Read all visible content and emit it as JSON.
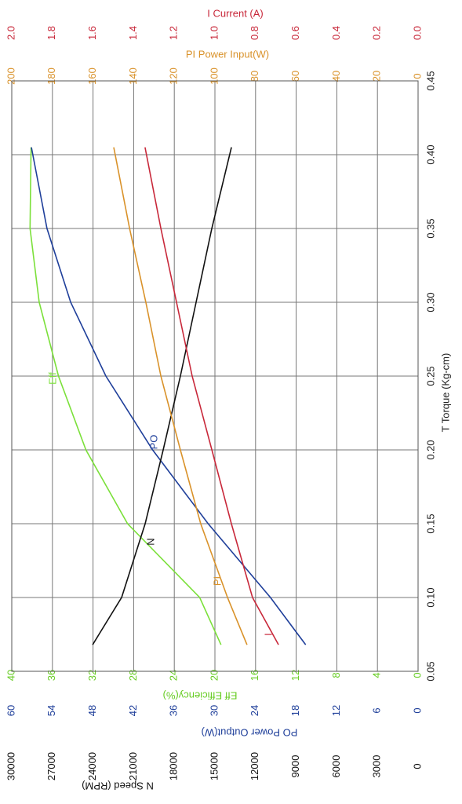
{
  "chart_data": {
    "type": "line",
    "x_label": "T    Torque (Kg-cm)",
    "xlim": [
      0.05,
      0.45
    ],
    "xticks": [
      0.05,
      {
        "value": 0.1,
        "label": "0.10"
      },
      0.15,
      {
        "value": 0.2,
        "label": "0.20"
      },
      0.25,
      {
        "value": 0.3,
        "label": "0.30"
      },
      0.35,
      {
        "value": 0.4,
        "label": "0.40"
      },
      0.45
    ],
    "grid": true,
    "axes": [
      {
        "id": "eff",
        "side": "left",
        "label": "Eff  Efficiency(%)",
        "color": "#66cc22",
        "lim": [
          0,
          40
        ],
        "ticks": [
          0,
          4,
          8,
          12,
          16,
          20,
          24,
          28,
          32,
          36,
          40
        ]
      },
      {
        "id": "po",
        "side": "left",
        "label": "PO   Power Output(W)",
        "color": "#1f3f9a",
        "lim": [
          0,
          60
        ],
        "ticks": [
          0,
          6,
          12,
          18,
          24,
          30,
          36,
          42,
          48,
          54,
          60
        ]
      },
      {
        "id": "n",
        "side": "left",
        "label": "N   Speed (RPM)",
        "color": "#111111",
        "lim": [
          0,
          30000
        ],
        "ticks": [
          0,
          3000,
          6000,
          9000,
          12000,
          15000,
          18000,
          21000,
          24000,
          27000,
          30000
        ]
      },
      {
        "id": "pi",
        "side": "top",
        "label": "PI   Power Input(W)",
        "color": "#d9922a",
        "lim": [
          0,
          200
        ],
        "ticks": [
          0,
          20,
          40,
          60,
          80,
          100,
          120,
          140,
          160,
          180,
          200
        ]
      },
      {
        "id": "i",
        "side": "top",
        "label": "I   Current (A)",
        "color": "#c8283a",
        "lim": [
          0,
          2
        ],
        "ticks": [
          {
            "value": 0,
            "label": "0.0"
          },
          0.2,
          0.4,
          0.6,
          0.8,
          {
            "value": 1,
            "label": "1.0"
          },
          1.2,
          1.4,
          1.6,
          1.8,
          {
            "value": 2,
            "label": "2.0"
          }
        ]
      }
    ],
    "x": [
      0.068,
      0.1,
      0.15,
      0.2,
      0.25,
      0.3,
      0.35,
      0.405
    ],
    "series": [
      {
        "name": "Eff",
        "axis": "eff",
        "color": "#7be03a",
        "values": [
          19.4,
          21.5,
          28.6,
          32.7,
          35.4,
          37.3,
          38.2,
          38.1
        ]
      },
      {
        "name": "PO",
        "axis": "po",
        "color": "#1f3f9a",
        "values": [
          16.6,
          21.8,
          31.0,
          39.2,
          46.1,
          51.3,
          54.8,
          57.1
        ]
      },
      {
        "name": "N",
        "axis": "n",
        "color": "#111111",
        "values": [
          24030,
          21890,
          20150,
          18820,
          17550,
          16390,
          15230,
          13780
        ]
      },
      {
        "name": "PI",
        "axis": "pi",
        "color": "#d9922a",
        "values": [
          84.2,
          93.8,
          107,
          117,
          126.6,
          134,
          142,
          149.8
        ]
      },
      {
        "name": "I",
        "axis": "i",
        "color": "#c8283a",
        "values": [
          0.687,
          0.815,
          0.919,
          1.015,
          1.112,
          1.189,
          1.266,
          1.344
        ]
      }
    ]
  }
}
